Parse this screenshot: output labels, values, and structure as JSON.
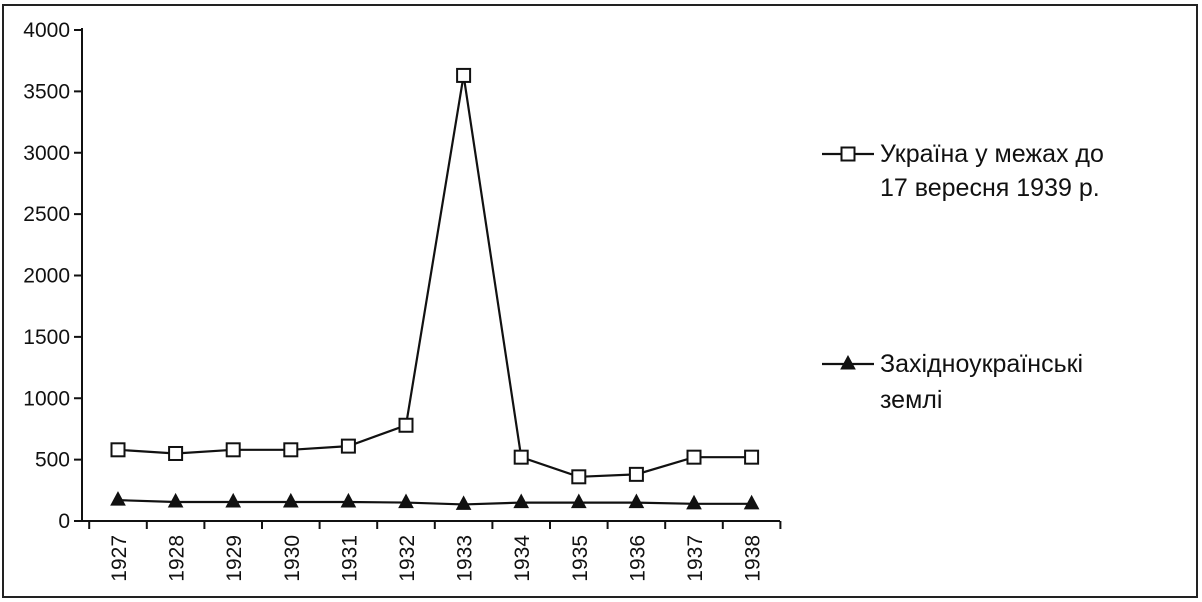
{
  "chart_data": {
    "type": "line",
    "title": "",
    "xlabel": "",
    "ylabel": "",
    "x": [
      "1927",
      "1928",
      "1929",
      "1930",
      "1931",
      "1932",
      "1933",
      "1934",
      "1935",
      "1936",
      "1937",
      "1938"
    ],
    "ylim": [
      0,
      4000
    ],
    "yticks": [
      0,
      500,
      1000,
      1500,
      2000,
      2500,
      3000,
      3500,
      4000
    ],
    "grid": false,
    "legend_position": "right",
    "series": [
      {
        "name_lines": [
          "Україна у межах до",
          "17 вересня 1939 р."
        ],
        "marker": "open-square",
        "color": "#111111",
        "values": [
          580,
          550,
          580,
          580,
          610,
          780,
          3630,
          520,
          360,
          380,
          520,
          520
        ]
      },
      {
        "name_lines": [
          "Західноукраїнські",
          "землі"
        ],
        "marker": "filled-triangle",
        "color": "#111111",
        "values": [
          170,
          155,
          155,
          155,
          155,
          150,
          135,
          150,
          150,
          150,
          140,
          140
        ]
      }
    ]
  }
}
